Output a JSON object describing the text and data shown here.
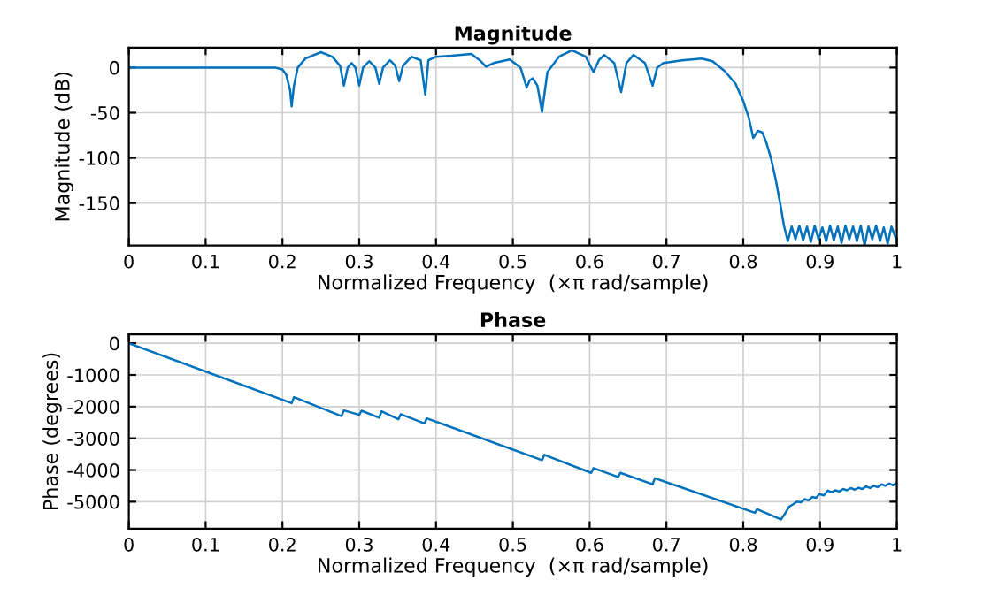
{
  "chart_data": [
    {
      "type": "line",
      "title": "Magnitude",
      "xlabel": "Normalized Frequency  (×π rad/sample)",
      "ylabel": "Magnitude (dB)",
      "xlim": [
        0,
        1
      ],
      "ylim": [
        -197,
        22
      ],
      "xticks": [
        0,
        0.1,
        0.2,
        0.3,
        0.4,
        0.5,
        0.6,
        0.7,
        0.8,
        0.9,
        1
      ],
      "yticks": [
        -150,
        -100,
        -50,
        0
      ],
      "grid": true,
      "series": [
        {
          "color": "#0072bd",
          "x": [
            0,
            0.1,
            0.19,
            0.2,
            0.205,
            0.21,
            0.212,
            0.215,
            0.22,
            0.23,
            0.25,
            0.265,
            0.275,
            0.28,
            0.285,
            0.29,
            0.295,
            0.3,
            0.305,
            0.313,
            0.321,
            0.326,
            0.331,
            0.34,
            0.347,
            0.352,
            0.357,
            0.368,
            0.38,
            0.386,
            0.39,
            0.4,
            0.42,
            0.446,
            0.457,
            0.465,
            0.475,
            0.496,
            0.51,
            0.518,
            0.522,
            0.526,
            0.532,
            0.538,
            0.545,
            0.56,
            0.577,
            0.595,
            0.605,
            0.612,
            0.619,
            0.632,
            0.641,
            0.648,
            0.657,
            0.672,
            0.682,
            0.688,
            0.696,
            0.72,
            0.746,
            0.76,
            0.776,
            0.79,
            0.8,
            0.807,
            0.813,
            0.819,
            0.825,
            0.83,
            0.836,
            0.842,
            0.848,
            0.853,
            0.858,
            0.863,
            0.868,
            0.873,
            0.878,
            0.883,
            0.888,
            0.893,
            0.898,
            0.903,
            0.908,
            0.913,
            0.918,
            0.923,
            0.928,
            0.933,
            0.938,
            0.943,
            0.948,
            0.953,
            0.958,
            0.963,
            0.968,
            0.973,
            0.978,
            0.983,
            0.988,
            0.993,
            1
          ],
          "values": [
            0,
            0,
            0,
            -2,
            -8,
            -25,
            -43,
            -20,
            0,
            10,
            17,
            12,
            2,
            -20,
            0,
            5,
            0,
            -20,
            0,
            7,
            0,
            -18,
            0,
            8,
            2,
            -15,
            2,
            12,
            8,
            -30,
            8,
            12,
            13,
            15,
            8,
            1,
            5,
            9,
            0,
            -22,
            -14,
            -12,
            -20,
            -49,
            -5,
            12,
            19,
            12,
            -5,
            8,
            14,
            5,
            -27,
            5,
            14,
            5,
            -20,
            0,
            5,
            8,
            10,
            7,
            -4,
            -18,
            -37,
            -55,
            -78,
            -70,
            -72,
            -83,
            -100,
            -123,
            -150,
            -175,
            -192,
            -176,
            -190,
            -175,
            -191,
            -176,
            -193,
            -175,
            -190,
            -177,
            -192,
            -175,
            -191,
            -176,
            -194,
            -175,
            -190,
            -176,
            -192,
            -175,
            -197,
            -176,
            -190,
            -175,
            -192,
            -177,
            -195,
            -176,
            -192
          ]
        }
      ]
    },
    {
      "type": "line",
      "title": "Phase",
      "xlabel": "Normalized Frequency  (×π rad/sample)",
      "ylabel": "Phase (degrees)",
      "xlim": [
        0,
        1
      ],
      "ylim": [
        -5850,
        280
      ],
      "xticks": [
        0,
        0.1,
        0.2,
        0.3,
        0.4,
        0.5,
        0.6,
        0.7,
        0.8,
        0.9,
        1
      ],
      "yticks": [
        -5000,
        -4000,
        -3000,
        -2000,
        -1000,
        0
      ],
      "grid": true,
      "series": [
        {
          "color": "#0072bd",
          "x": [
            0,
            0.212,
            0.215,
            0.277,
            0.28,
            0.3,
            0.303,
            0.326,
            0.329,
            0.351,
            0.354,
            0.385,
            0.388,
            0.538,
            0.541,
            0.602,
            0.605,
            0.637,
            0.64,
            0.682,
            0.685,
            0.815,
            0.818,
            0.849,
            0.855,
            0.86,
            0.865,
            0.87,
            0.875,
            0.88,
            0.885,
            0.89,
            0.895,
            0.899,
            0.905,
            0.91,
            0.915,
            0.92,
            0.925,
            0.93,
            0.935,
            0.94,
            0.945,
            0.95,
            0.955,
            0.96,
            0.965,
            0.97,
            0.975,
            0.98,
            0.985,
            0.99,
            0.995,
            1
          ],
          "values": [
            0,
            -1890,
            -1700,
            -2300,
            -2120,
            -2260,
            -2130,
            -2350,
            -2150,
            -2400,
            -2240,
            -2530,
            -2370,
            -3690,
            -3520,
            -4090,
            -3940,
            -4220,
            -4090,
            -4450,
            -4260,
            -5350,
            -5240,
            -5560,
            -5350,
            -5150,
            -5080,
            -5000,
            -5020,
            -4920,
            -4960,
            -4850,
            -4880,
            -4760,
            -4800,
            -4650,
            -4700,
            -4640,
            -4680,
            -4600,
            -4640,
            -4570,
            -4620,
            -4560,
            -4600,
            -4520,
            -4570,
            -4500,
            -4540,
            -4450,
            -4500,
            -4430,
            -4480,
            -4400
          ]
        }
      ]
    }
  ]
}
